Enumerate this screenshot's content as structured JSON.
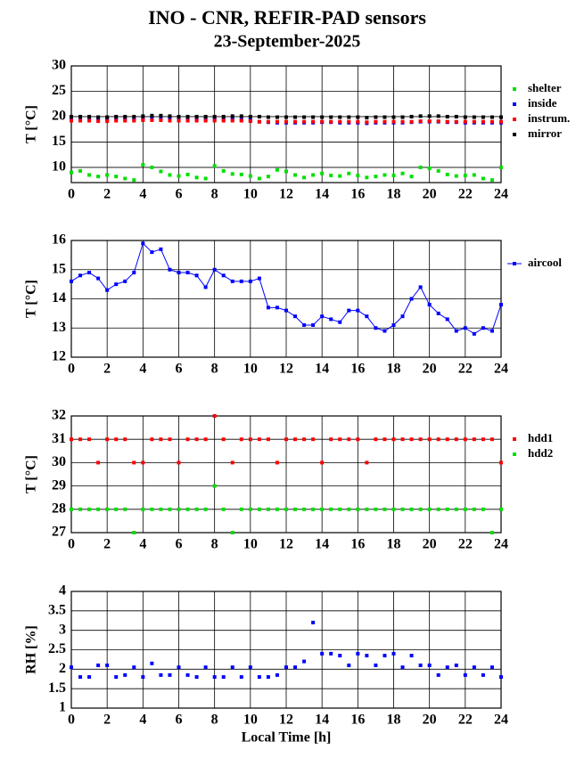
{
  "title": "INO - CNR, REFIR-PAD sensors",
  "subtitle": "23-September-2025",
  "chart_data": [
    {
      "type": "scatter",
      "ylabel": "T [°C]",
      "xlim": [
        0,
        24
      ],
      "xticks": [
        0,
        2,
        4,
        6,
        8,
        10,
        12,
        14,
        16,
        18,
        20,
        22,
        24
      ],
      "ylim": [
        7,
        30
      ],
      "yticks": [
        10,
        15,
        20,
        25,
        30
      ],
      "grid": true,
      "legend": "right",
      "x": [
        0,
        0.5,
        1,
        1.5,
        2,
        2.5,
        3,
        3.5,
        4,
        4.5,
        5,
        5.5,
        6,
        6.5,
        7,
        7.5,
        8,
        8.5,
        9,
        9.5,
        10,
        10.5,
        11,
        11.5,
        12,
        12.5,
        13,
        13.5,
        14,
        14.5,
        15,
        15.5,
        16,
        16.5,
        17,
        17.5,
        18,
        18.5,
        19,
        19.5,
        20,
        20.5,
        21,
        21.5,
        22,
        22.5,
        23,
        23.5,
        24
      ],
      "series": [
        {
          "name": "shelter",
          "color": "#00e000",
          "values": [
            9,
            9.3,
            8.5,
            8.2,
            8.5,
            8.2,
            7.8,
            7.5,
            10.5,
            10,
            9.2,
            8.5,
            8.3,
            8.6,
            8,
            7.8,
            10.3,
            9.3,
            8.7,
            8.6,
            8.3,
            7.8,
            8.2,
            9.5,
            9.2,
            8.5,
            8,
            8.5,
            8.8,
            8.4,
            8.3,
            8.8,
            8.4,
            8,
            8.2,
            8.5,
            8.4,
            8.8,
            8.2,
            10,
            9.8,
            9.3,
            8.6,
            8.3,
            8.4,
            8.5,
            7.8,
            7.5,
            10
          ]
        },
        {
          "name": "inside",
          "color": "#0000ff",
          "values": [
            19.6,
            19.5,
            19.5,
            19.4,
            19.5,
            19.5,
            19.5,
            19.5,
            19.6,
            19.6,
            19.6,
            19.5,
            19.5,
            19.5,
            19.5,
            19.5,
            19.5,
            19.5,
            19.5,
            19.4,
            19.3,
            19.0,
            18.9,
            18.8,
            18.8,
            18.8,
            18.8,
            18.8,
            18.9,
            18.9,
            18.8,
            18.8,
            18.8,
            18.7,
            18.8,
            18.8,
            18.8,
            18.8,
            18.9,
            19.0,
            19.0,
            19.0,
            18.9,
            18.9,
            18.8,
            18.8,
            18.8,
            18.8,
            18.8
          ]
        },
        {
          "name": "instrum.",
          "color": "#ff0000",
          "values": [
            19.2,
            19.2,
            19.2,
            19.1,
            19.1,
            19.2,
            19.2,
            19.2,
            19.3,
            19.3,
            19.3,
            19.2,
            19.2,
            19.2,
            19.2,
            19.2,
            19.2,
            19.2,
            19.2,
            19.2,
            19.1,
            19.0,
            19.0,
            19.0,
            19.0,
            19.0,
            19.0,
            19.0,
            19.0,
            19.0,
            19.0,
            19.0,
            19.0,
            18.9,
            19.0,
            19.0,
            19.0,
            19.0,
            19.0,
            19.1,
            19.1,
            19.1,
            19.0,
            19.0,
            19.0,
            19.0,
            19.0,
            19.0,
            19.0
          ]
        },
        {
          "name": "mirror",
          "color": "#000000",
          "values": [
            20,
            20,
            20,
            19.9,
            19.9,
            20,
            20,
            20,
            20.1,
            20.2,
            20.2,
            20.1,
            20,
            20,
            20,
            20,
            20,
            20,
            20.1,
            20.1,
            20,
            20,
            19.9,
            19.9,
            19.9,
            19.9,
            19.9,
            19.9,
            19.9,
            19.9,
            19.9,
            19.9,
            19.9,
            19.8,
            19.9,
            19.9,
            19.9,
            19.9,
            20,
            20.1,
            20.1,
            20.1,
            20,
            20,
            19.9,
            19.9,
            19.9,
            19.9,
            19.9
          ]
        }
      ]
    },
    {
      "type": "scatter",
      "ylabel": "T [°C]",
      "xlim": [
        0,
        24
      ],
      "xticks": [
        0,
        2,
        4,
        6,
        8,
        10,
        12,
        14,
        16,
        18,
        20,
        22,
        24
      ],
      "ylim": [
        12,
        16
      ],
      "yticks": [
        12,
        13,
        14,
        15,
        16
      ],
      "grid": true,
      "legend": "right",
      "connect": true,
      "x": [
        0,
        0.5,
        1,
        1.5,
        2,
        2.5,
        3,
        3.5,
        4,
        4.5,
        5,
        5.5,
        6,
        6.5,
        7,
        7.5,
        8,
        8.5,
        9,
        9.5,
        10,
        10.5,
        11,
        11.5,
        12,
        12.5,
        13,
        13.5,
        14,
        14.5,
        15,
        15.5,
        16,
        16.5,
        17,
        17.5,
        18,
        18.5,
        19,
        19.5,
        20,
        20.5,
        21,
        21.5,
        22,
        22.5,
        23,
        23.5,
        24
      ],
      "series": [
        {
          "name": "aircool",
          "color": "#0000ff",
          "values": [
            14.6,
            14.8,
            14.9,
            14.7,
            14.3,
            14.5,
            14.6,
            14.9,
            15.9,
            15.6,
            15.7,
            15.0,
            14.9,
            14.9,
            14.8,
            14.4,
            15.0,
            14.8,
            14.6,
            14.6,
            14.6,
            14.7,
            13.7,
            13.7,
            13.6,
            13.4,
            13.1,
            13.1,
            13.4,
            13.3,
            13.2,
            13.6,
            13.6,
            13.4,
            13.0,
            12.9,
            13.1,
            13.4,
            14.0,
            14.4,
            13.8,
            13.5,
            13.3,
            12.9,
            13.0,
            12.8,
            13.0,
            12.9,
            13.8
          ]
        }
      ]
    },
    {
      "type": "scatter",
      "ylabel": "T [°C]",
      "xlim": [
        0,
        24
      ],
      "xticks": [
        0,
        2,
        4,
        6,
        8,
        10,
        12,
        14,
        16,
        18,
        20,
        22,
        24
      ],
      "ylim": [
        27,
        32
      ],
      "yticks": [
        27,
        28,
        29,
        30,
        31,
        32
      ],
      "grid": true,
      "legend": "right",
      "x": [
        0,
        0.5,
        1,
        1.5,
        2,
        2.5,
        3,
        3.5,
        4,
        4.5,
        5,
        5.5,
        6,
        6.5,
        7,
        7.5,
        8,
        8.5,
        9,
        9.5,
        10,
        10.5,
        11,
        11.5,
        12,
        12.5,
        13,
        13.5,
        14,
        14.5,
        15,
        15.5,
        16,
        16.5,
        17,
        17.5,
        18,
        18.5,
        19,
        19.5,
        20,
        20.5,
        21,
        21.5,
        22,
        22.5,
        23,
        23.5,
        24
      ],
      "series": [
        {
          "name": "hdd1",
          "color": "#ff0000",
          "values": [
            31,
            31,
            31,
            30,
            31,
            31,
            31,
            30,
            30,
            31,
            31,
            31,
            30,
            31,
            31,
            31,
            32,
            31,
            30,
            31,
            31,
            31,
            31,
            30,
            31,
            31,
            31,
            31,
            30,
            31,
            31,
            31,
            31,
            30,
            31,
            31,
            31,
            31,
            31,
            31,
            31,
            31,
            31,
            31,
            31,
            31,
            31,
            31,
            30
          ]
        },
        {
          "name": "hdd2",
          "color": "#00e000",
          "values": [
            28,
            28,
            28,
            28,
            28,
            28,
            28,
            27,
            28,
            28,
            28,
            28,
            28,
            28,
            28,
            28,
            29,
            28,
            27,
            28,
            28,
            28,
            28,
            28,
            28,
            28,
            28,
            28,
            28,
            28,
            28,
            28,
            28,
            28,
            28,
            28,
            28,
            28,
            28,
            28,
            28,
            28,
            28,
            28,
            28,
            28,
            28,
            27,
            28
          ]
        }
      ]
    },
    {
      "type": "scatter",
      "ylabel": "RH [%]",
      "xlabel": "Local Time [h]",
      "xlim": [
        0,
        24
      ],
      "xticks": [
        0,
        2,
        4,
        6,
        8,
        10,
        12,
        14,
        16,
        18,
        20,
        22,
        24
      ],
      "ylim": [
        1,
        4
      ],
      "yticks": [
        1,
        1.5,
        2,
        2.5,
        3,
        3.5,
        4
      ],
      "grid": true,
      "x": [
        0,
        0.5,
        1,
        1.5,
        2,
        2.5,
        3,
        3.5,
        4,
        4.5,
        5,
        5.5,
        6,
        6.5,
        7,
        7.5,
        8,
        8.5,
        9,
        9.5,
        10,
        10.5,
        11,
        11.5,
        12,
        12.5,
        13,
        13.5,
        14,
        14.5,
        15,
        15.5,
        16,
        16.5,
        17,
        17.5,
        18,
        18.5,
        19,
        19.5,
        20,
        20.5,
        21,
        21.5,
        22,
        22.5,
        23,
        23.5,
        24
      ],
      "series": [
        {
          "color": "#0000ff",
          "values": [
            2.05,
            1.8,
            1.8,
            2.1,
            2.1,
            1.8,
            1.85,
            2.05,
            1.8,
            2.15,
            1.85,
            1.85,
            2.05,
            1.85,
            1.8,
            2.05,
            1.8,
            1.8,
            2.05,
            1.8,
            2.05,
            1.8,
            1.8,
            1.85,
            2.05,
            2.05,
            2.2,
            3.2,
            2.4,
            2.4,
            2.35,
            2.1,
            2.4,
            2.35,
            2.1,
            2.35,
            2.4,
            2.05,
            2.35,
            2.1,
            2.1,
            1.85,
            2.05,
            2.1,
            1.85,
            2.05,
            1.85,
            2.05,
            1.8
          ]
        }
      ]
    }
  ]
}
